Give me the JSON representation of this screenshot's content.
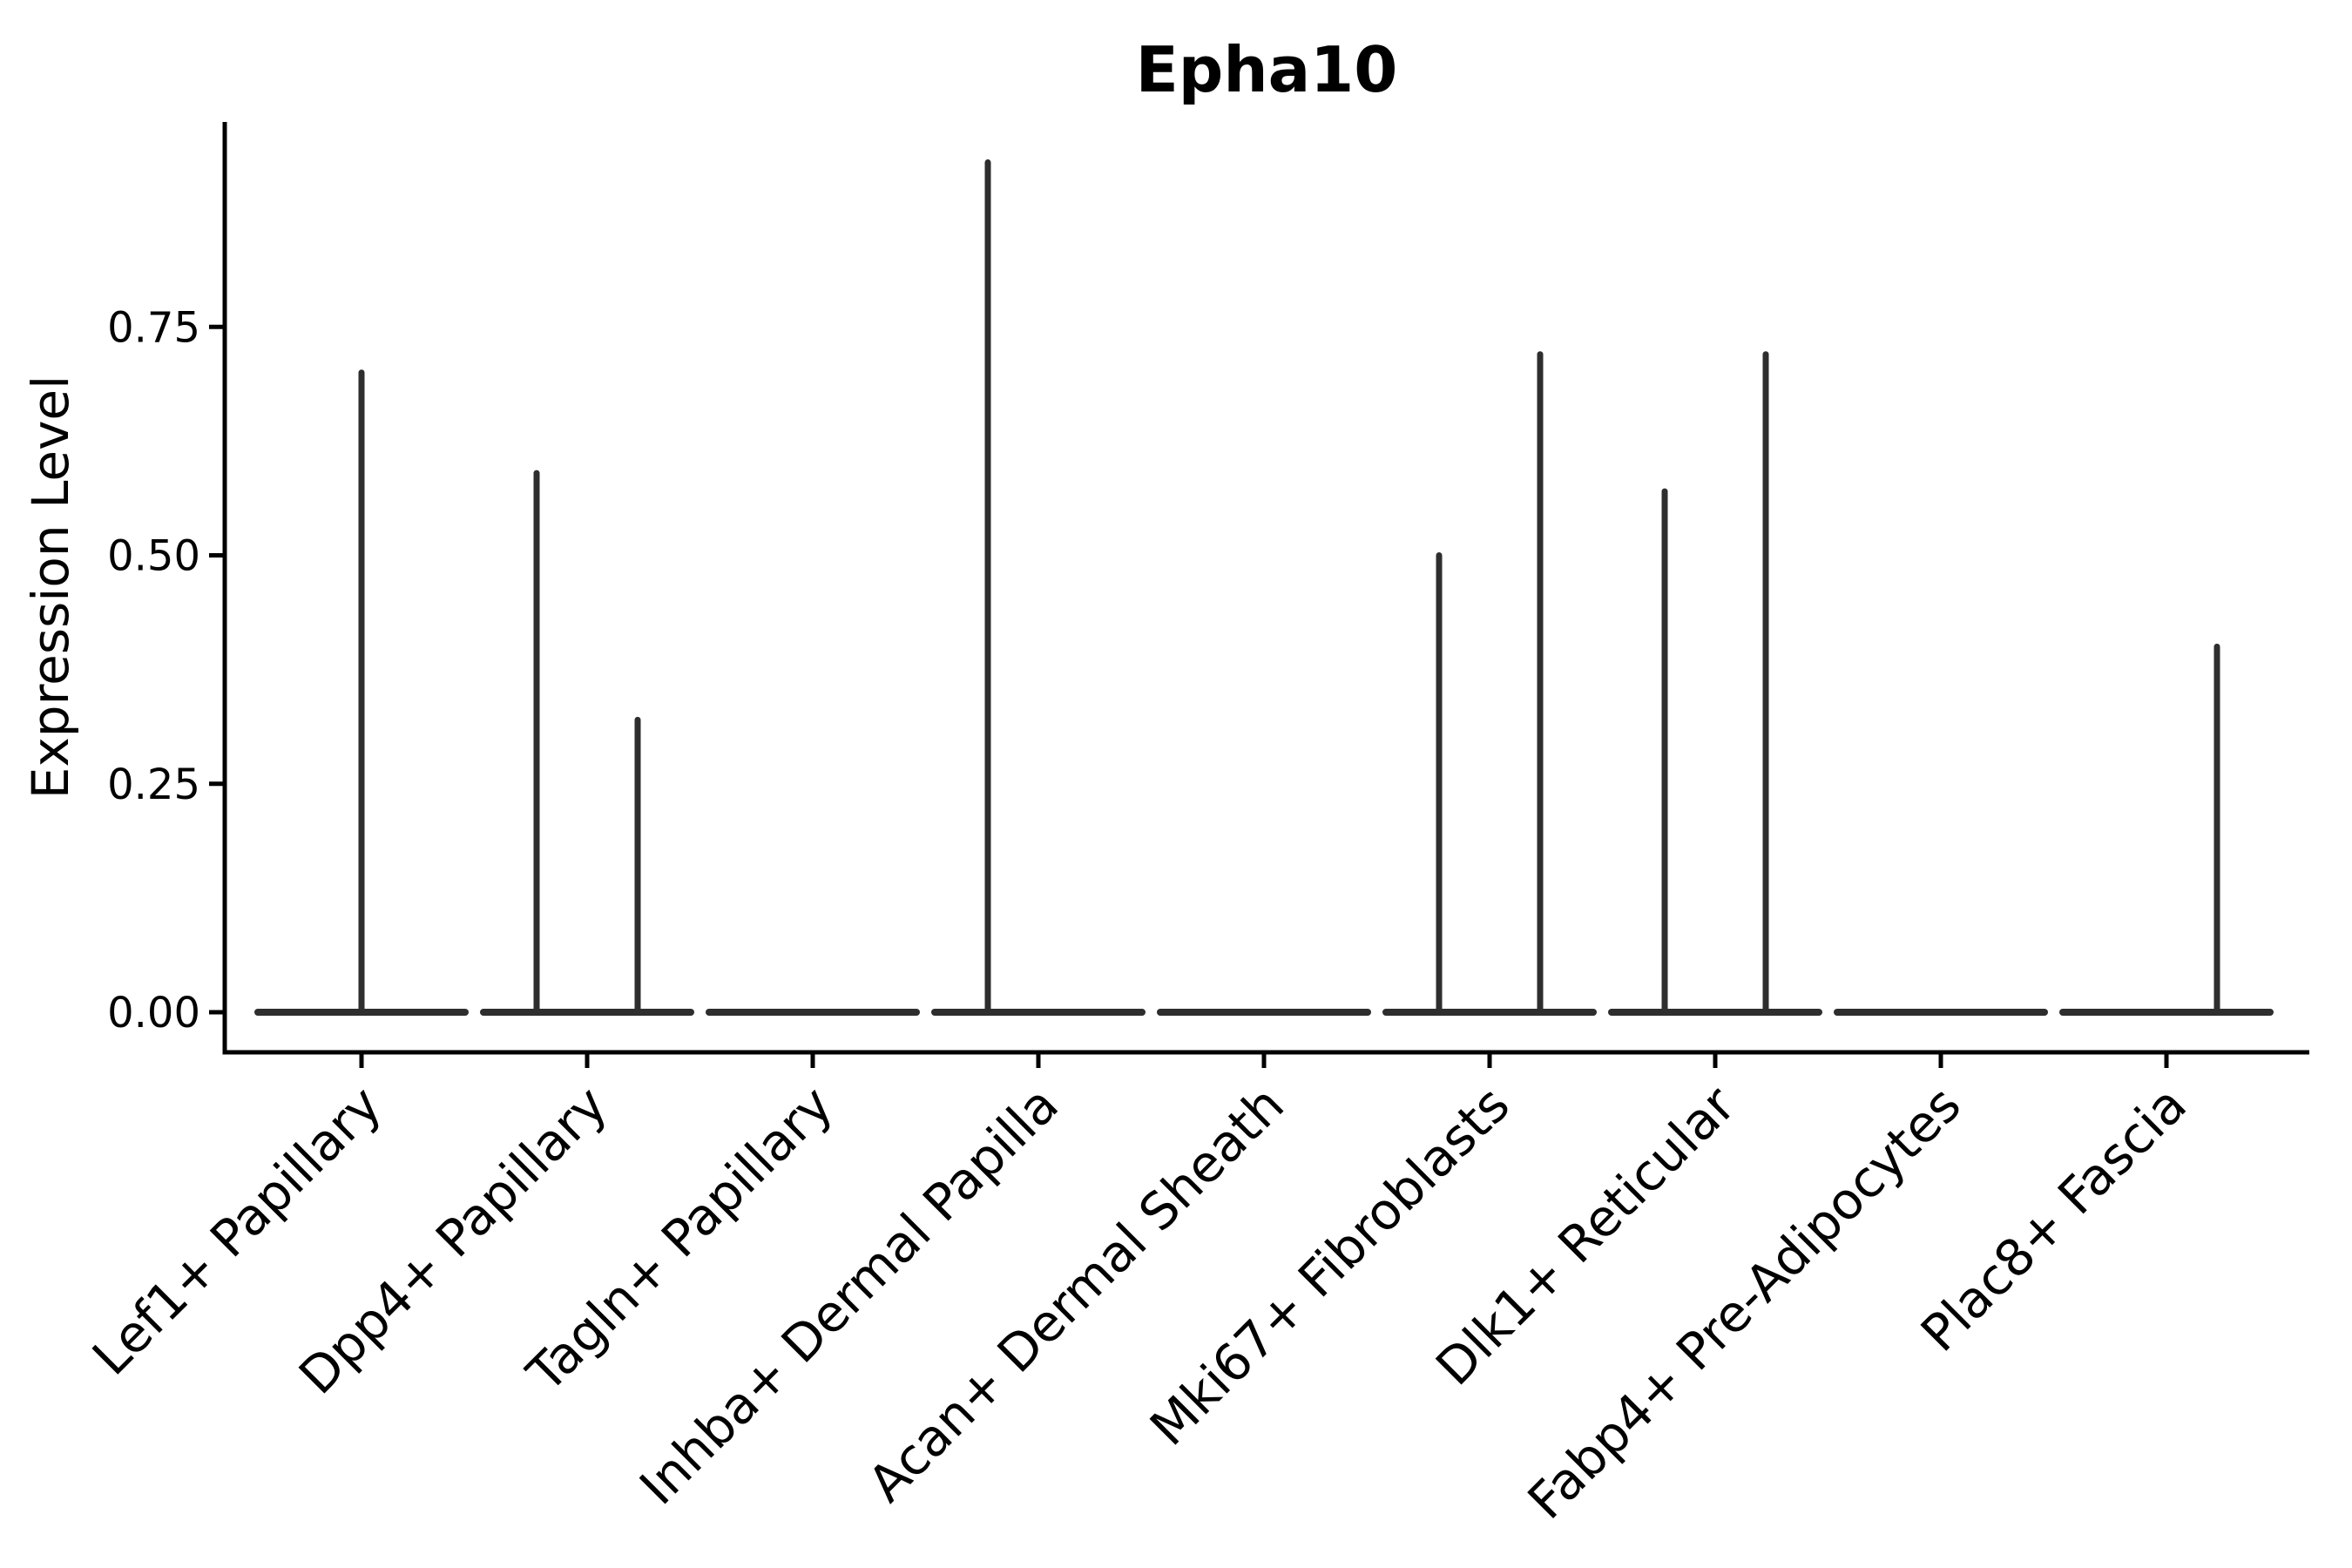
{
  "chart_data": {
    "type": "violin",
    "title": "Epha10",
    "xlabel": "",
    "ylabel": "Expression Level",
    "legend": "none",
    "grid": false,
    "background": "#ffffff",
    "ylim": [
      -0.046,
      0.974
    ],
    "y_tick_values": [
      0,
      0.25,
      0.5,
      0.75
    ],
    "y_tick_labels": [
      "0.00",
      "0.25",
      "0.50",
      "0.75"
    ],
    "x_tick_angle_deg": 45,
    "categories": [
      "Lef1+ Papillary",
      "Dpp4+ Papillary",
      "Tagln+ Papillary",
      "Inhba+ Dermal Papilla",
      "Acan+ Dermal Sheath",
      "Mki67+ Fibroblasts",
      "Dlk1+ Reticular",
      "Fabp4+ Pre-Adipocytes",
      "Plac8+ Fascia"
    ],
    "violins": [
      {
        "category": "Lef1+ Papillary",
        "baseline_value": 0,
        "spikes": [
          {
            "position": "center",
            "max": 0.7
          }
        ]
      },
      {
        "category": "Dpp4+ Papillary",
        "baseline_value": 0,
        "spikes": [
          {
            "position": "left",
            "max": 0.59
          },
          {
            "position": "right",
            "max": 0.32
          }
        ]
      },
      {
        "category": "Tagln+ Papillary",
        "baseline_value": 0,
        "spikes": []
      },
      {
        "category": "Inhba+ Dermal Papilla",
        "baseline_value": 0,
        "spikes": [
          {
            "position": "left",
            "max": 0.93
          }
        ]
      },
      {
        "category": "Acan+ Dermal Sheath",
        "baseline_value": 0,
        "spikes": []
      },
      {
        "category": "Mki67+ Fibroblasts",
        "baseline_value": 0,
        "spikes": [
          {
            "position": "left",
            "max": 0.5
          },
          {
            "position": "right",
            "max": 0.72
          }
        ]
      },
      {
        "category": "Dlk1+ Reticular",
        "baseline_value": 0,
        "spikes": [
          {
            "position": "left",
            "max": 0.57
          },
          {
            "position": "right",
            "max": 0.72
          }
        ]
      },
      {
        "category": "Fabp4+ Pre-Adipocytes",
        "baseline_value": 0,
        "spikes": []
      },
      {
        "category": "Plac8+ Fascia",
        "baseline_value": 0,
        "spikes": [
          {
            "position": "right",
            "max": 0.4
          }
        ]
      }
    ],
    "colors": {
      "violin_stroke": "#2e2e2e",
      "axis": "#000000",
      "text": "#000000",
      "background": "#ffffff"
    }
  }
}
